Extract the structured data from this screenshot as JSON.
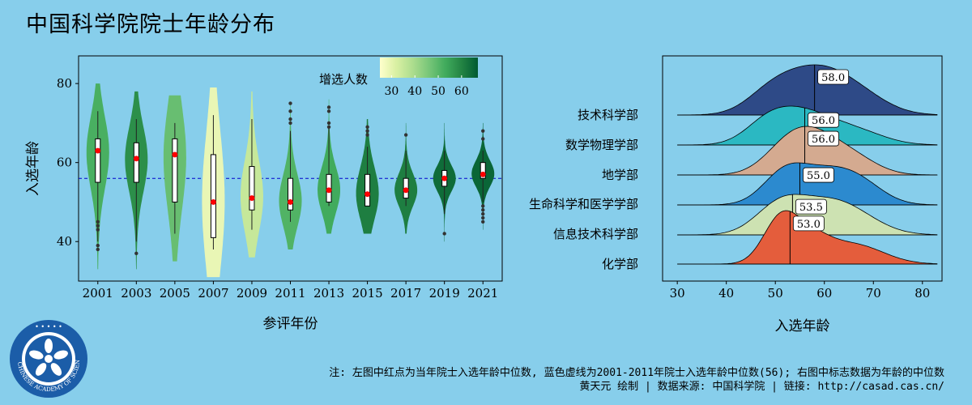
{
  "page": {
    "title": "中国科学院院士年龄分布",
    "footnote_line1": "注: 左图中红点为当年院士入选年龄中位数, 蓝色虚线为2001-2011年院士入选年龄中位数(56); 右图中标志数据为年龄的中位数",
    "footnote_line2": "黄天元 绘制 | 数据来源: 中国科学院 | 链接: http://casad.cas.cn/",
    "logo_text": "CHINESE ACADEMY OF SCIENCES"
  },
  "colors": {
    "background": "#87CEEB",
    "median_point": "#FF0000",
    "reference_line": "#0000CC",
    "colorbar_stops": [
      "#FFFFCC",
      "#D9F0A3",
      "#ADDD8E",
      "#78C679",
      "#41AB5D",
      "#238443",
      "#005A32"
    ]
  },
  "chart_data": [
    {
      "type": "violin",
      "title": "",
      "xlabel": "参评年份",
      "ylabel": "入选年龄",
      "ylim": [
        30,
        87
      ],
      "yticks": [
        40,
        60,
        80
      ],
      "reference_line": {
        "y": 56,
        "style": "dashed",
        "color": "#0000CC"
      },
      "colorbar": {
        "label": "增选人数",
        "ticks": [
          30,
          40,
          50,
          60
        ],
        "range": [
          25,
          67
        ]
      },
      "groups": [
        {
          "year": "2001",
          "count": 52,
          "min": 33,
          "max": 80,
          "q1": 55,
          "median": 63,
          "q3": 66,
          "outliers": [
            45,
            44,
            43,
            39,
            38
          ]
        },
        {
          "year": "2003",
          "count": 58,
          "min": 33,
          "max": 78,
          "q1": 55,
          "median": 61,
          "q3": 65,
          "outliers": [
            37
          ]
        },
        {
          "year": "2005",
          "count": 48,
          "min": 35,
          "max": 77,
          "q1": 50,
          "median": 62,
          "q3": 66,
          "outliers": []
        },
        {
          "year": "2007",
          "count": 29,
          "min": 31,
          "max": 79,
          "q1": 41,
          "median": 50,
          "q3": 62,
          "outliers": []
        },
        {
          "year": "2009",
          "count": 35,
          "min": 36,
          "max": 78,
          "q1": 48,
          "median": 51,
          "q3": 59,
          "outliers": []
        },
        {
          "year": "2011",
          "count": 51,
          "min": 38,
          "max": 75,
          "q1": 48,
          "median": 50,
          "q3": 56,
          "outliers": [
            75,
            73,
            71,
            70
          ]
        },
        {
          "year": "2013",
          "count": 53,
          "min": 42,
          "max": 76,
          "q1": 50,
          "median": 53,
          "q3": 57,
          "outliers": [
            74,
            73,
            70,
            69
          ]
        },
        {
          "year": "2015",
          "count": 61,
          "min": 42,
          "max": 71,
          "q1": 49,
          "median": 52,
          "q3": 57,
          "outliers": [
            69,
            68,
            67
          ]
        },
        {
          "year": "2017",
          "count": 61,
          "min": 42,
          "max": 70,
          "q1": 51,
          "median": 53,
          "q3": 56,
          "outliers": [
            67
          ]
        },
        {
          "year": "2019",
          "count": 64,
          "min": 40,
          "max": 70,
          "q1": 54,
          "median": 56,
          "q3": 58,
          "outliers": [
            42
          ]
        },
        {
          "year": "2021",
          "count": 65,
          "min": 43,
          "max": 70,
          "q1": 56,
          "median": 57,
          "q3": 60,
          "outliers": [
            68,
            66,
            49,
            48,
            47,
            46,
            45
          ]
        }
      ]
    },
    {
      "type": "ridgeline",
      "title": "",
      "xlabel": "入选年龄",
      "ylabel": "",
      "xlim": [
        27,
        84
      ],
      "xticks": [
        30,
        40,
        50,
        60,
        70,
        80
      ],
      "series": [
        {
          "name": "技术科学部",
          "median": 58.0,
          "color": "#2E4A87",
          "median_label": "58.0"
        },
        {
          "name": "数学物理学部",
          "median": 56.0,
          "color": "#2BB8C2",
          "median_label": "56.0"
        },
        {
          "name": "地学部",
          "median": 56.0,
          "color": "#D4AA90",
          "median_label": "56.0"
        },
        {
          "name": "生命科学和医学学部",
          "median": 55.0,
          "color": "#2C8ACF",
          "median_label": "55.0"
        },
        {
          "name": "信息技术科学部",
          "median": 53.5,
          "color": "#CDE2B2",
          "median_label": "53.5"
        },
        {
          "name": "化学部",
          "median": 53.0,
          "color": "#E45D3C",
          "median_label": "53.0"
        }
      ]
    }
  ]
}
